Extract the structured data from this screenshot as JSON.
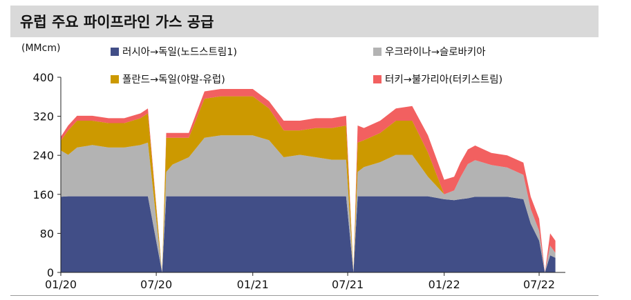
{
  "header": {
    "title": "유럽 주요 파이프라인 가스 공급"
  },
  "unit": "(MMcm)",
  "colors": {
    "russia_germany": "#414e87",
    "ukraine_slovakia": "#b3b3b3",
    "poland_germany": "#cc9900",
    "turkey_bulgaria": "#f26060",
    "axis": "#222222",
    "title_bg": "#d9d9d9"
  },
  "chart_data": {
    "type": "area",
    "stacked": true,
    "xlabel": "",
    "ylabel": "(MMcm)",
    "ylim": [
      0,
      400
    ],
    "yticks": [
      0,
      80,
      160,
      240,
      320,
      400
    ],
    "x_tick_labels": [
      "01/20",
      "07/20",
      "01/21",
      "07/21",
      "01/22",
      "07/22"
    ],
    "x_tick_dates": [
      "2020-01-01",
      "2020-07-01",
      "2021-01-01",
      "2021-07-01",
      "2022-01-01",
      "2022-07-01"
    ],
    "legend_position": "top",
    "series_order": [
      "러시아→독일(노드스트림1)",
      "우크라이나→슬로바키아",
      "폴란드→독일(야말-유럽)",
      "터키→불가리아(터키스트림)"
    ],
    "x": [
      "2020-01-01",
      "2020-01-15",
      "2020-02-01",
      "2020-03-01",
      "2020-04-01",
      "2020-05-01",
      "2020-06-01",
      "2020-06-15",
      "2020-07-12",
      "2020-07-20",
      "2020-08-01",
      "2020-09-01",
      "2020-10-01",
      "2020-11-01",
      "2020-12-01",
      "2021-01-01",
      "2021-02-01",
      "2021-03-01",
      "2021-04-01",
      "2021-05-01",
      "2021-06-01",
      "2021-06-28",
      "2021-07-12",
      "2021-07-20",
      "2021-08-01",
      "2021-09-01",
      "2021-10-01",
      "2021-11-01",
      "2021-12-01",
      "2022-01-01",
      "2022-01-20",
      "2022-02-01",
      "2022-02-15",
      "2022-03-01",
      "2022-04-01",
      "2022-05-01",
      "2022-06-01",
      "2022-06-15",
      "2022-07-01",
      "2022-07-12",
      "2022-07-22",
      "2022-08-01"
    ],
    "series": [
      {
        "name": "러시아→독일(노드스트림1)",
        "values": [
          155,
          156,
          156,
          156,
          156,
          156,
          156,
          156,
          0,
          156,
          156,
          156,
          156,
          156,
          156,
          156,
          156,
          156,
          156,
          156,
          156,
          156,
          0,
          156,
          156,
          156,
          156,
          156,
          156,
          150,
          148,
          150,
          152,
          155,
          155,
          155,
          150,
          100,
          65,
          0,
          35,
          30
        ]
      },
      {
        "name": "우크라이나→슬로바키아",
        "values": [
          95,
          85,
          100,
          105,
          100,
          100,
          105,
          110,
          0,
          50,
          65,
          80,
          120,
          125,
          125,
          125,
          115,
          80,
          85,
          80,
          75,
          75,
          0,
          50,
          60,
          70,
          85,
          85,
          40,
          10,
          20,
          45,
          70,
          75,
          65,
          60,
          50,
          30,
          20,
          0,
          20,
          10
        ]
      },
      {
        "name": "폴란드→독일(야말-유럽)",
        "values": [
          20,
          50,
          55,
          50,
          50,
          50,
          55,
          60,
          0,
          70,
          55,
          40,
          80,
          80,
          80,
          80,
          65,
          55,
          50,
          60,
          65,
          70,
          0,
          60,
          55,
          60,
          70,
          70,
          50,
          0,
          0,
          0,
          0,
          0,
          0,
          0,
          0,
          0,
          0,
          0,
          0,
          0
        ]
      },
      {
        "name": "터키→불가리아(터키스트림)",
        "values": [
          8,
          10,
          10,
          10,
          10,
          10,
          10,
          10,
          0,
          10,
          10,
          10,
          15,
          15,
          15,
          15,
          15,
          20,
          20,
          20,
          20,
          20,
          0,
          35,
          25,
          25,
          25,
          30,
          35,
          30,
          28,
          30,
          30,
          30,
          25,
          25,
          25,
          25,
          25,
          0,
          25,
          25
        ]
      }
    ]
  }
}
